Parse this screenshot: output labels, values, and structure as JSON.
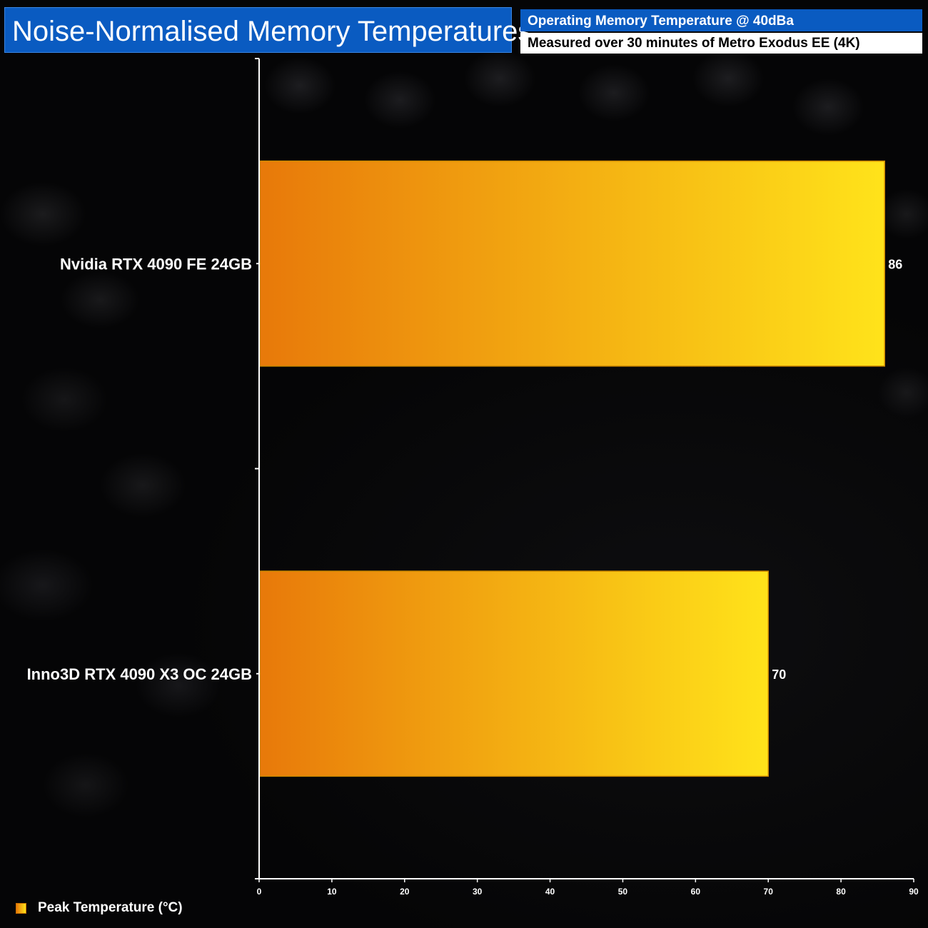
{
  "header": {
    "title": "Noise-Normalised Memory Temperatures",
    "subtitle": "Operating Memory Temperature @ 40dBa",
    "caption": "Measured over 30 minutes of Metro Exodus EE (4K)"
  },
  "legend": {
    "label": "Peak Temperature (°C)"
  },
  "colors": {
    "bar_start": "#e8790a",
    "bar_end": "#ffe31a",
    "title_bg": "#0a5bc1",
    "axis": "#ffffff"
  },
  "chart_data": {
    "type": "bar",
    "orientation": "horizontal",
    "categories": [
      "Nvidia RTX 4090 FE 24GB",
      "Inno3D RTX 4090 X3 OC 24GB"
    ],
    "series": [
      {
        "name": "Peak Temperature (°C)",
        "values": [
          86,
          70
        ]
      }
    ],
    "xlim": [
      0,
      90
    ],
    "xticks": [
      0,
      10,
      20,
      30,
      40,
      50,
      60,
      70,
      80,
      90
    ],
    "grid": false,
    "legend_position": "bottom-left"
  }
}
